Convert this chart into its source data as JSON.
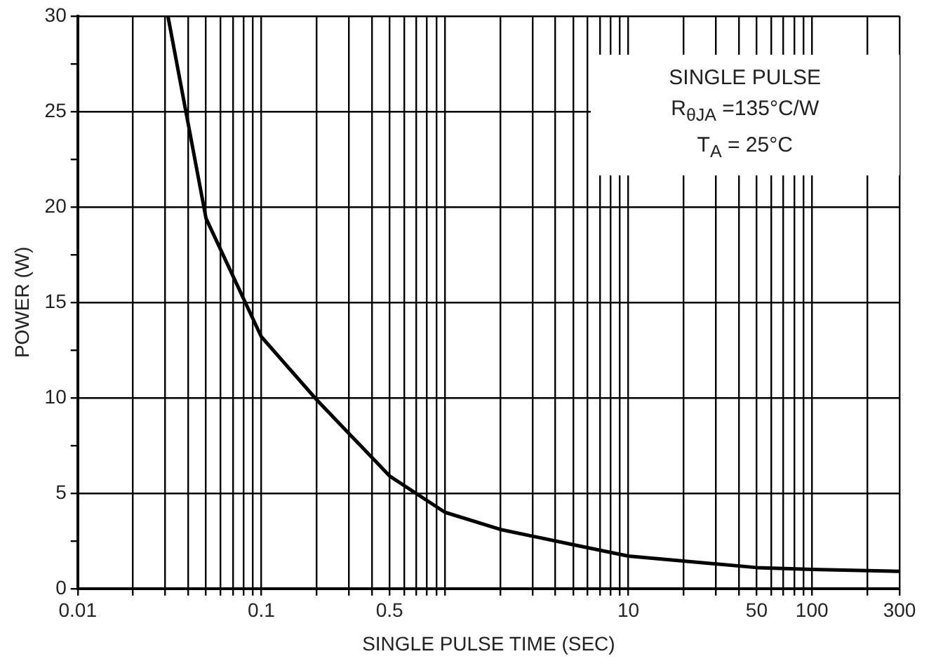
{
  "chart_data": {
    "type": "line",
    "xlabel": "SINGLE PULSE TIME (SEC)",
    "ylabel": "POWER (W)",
    "annotations": [
      "SINGLE PULSE",
      "R$_{θJA}$ =135°C/W",
      "T$_{A}$ = 25°C"
    ],
    "log": "x",
    "grid": true,
    "marker": "none",
    "line_style": "solid",
    "xlim": [
      0.01,
      300
    ],
    "xticks": [
      0.01,
      {
        "value": 0.02,
        "label": null
      },
      {
        "value": 0.03,
        "label": null
      },
      {
        "value": 0.04,
        "label": null
      },
      {
        "value": 0.05,
        "label": null
      },
      {
        "value": 0.06,
        "label": null
      },
      {
        "value": 0.07,
        "label": null
      },
      {
        "value": 0.08,
        "label": null
      },
      {
        "value": 0.09,
        "label": null
      },
      0.1,
      {
        "value": 0.2,
        "label": null
      },
      {
        "value": 0.3,
        "label": null
      },
      {
        "value": 0.4,
        "label": null
      },
      0.5,
      {
        "value": 0.6,
        "label": null
      },
      {
        "value": 0.7,
        "label": null
      },
      {
        "value": 0.8,
        "label": null
      },
      {
        "value": 0.9,
        "label": null
      },
      {
        "value": 1,
        "label": null
      },
      {
        "value": 2,
        "label": null
      },
      {
        "value": 3,
        "label": null
      },
      {
        "value": 4,
        "label": null
      },
      {
        "value": 5,
        "label": null
      },
      {
        "value": 6,
        "label": null
      },
      {
        "value": 7,
        "label": null
      },
      {
        "value": 8,
        "label": null
      },
      {
        "value": 9,
        "label": null
      },
      10,
      {
        "value": 20,
        "label": null
      },
      {
        "value": 30,
        "label": null
      },
      {
        "value": 40,
        "label": null
      },
      50,
      {
        "value": 60,
        "label": null
      },
      {
        "value": 70,
        "label": null
      },
      {
        "value": 80,
        "label": null
      },
      {
        "value": 90,
        "label": null
      },
      100,
      {
        "value": 200,
        "label": null
      },
      300
    ],
    "ylim": [
      0,
      30
    ],
    "yticks": [
      0,
      {
        "value": 2.5,
        "label": null
      },
      5,
      {
        "value": 7.5,
        "label": null
      },
      10,
      {
        "value": 12.5,
        "label": null
      },
      15,
      {
        "value": 17.5,
        "label": null
      },
      20,
      {
        "value": 22.5,
        "label": null
      },
      25,
      {
        "value": 27.5,
        "label": null
      },
      30
    ],
    "series": [
      {
        "color": "#000000",
        "x": [
          0.031,
          0.05,
          0.1,
          0.2,
          0.5,
          1,
          2,
          5,
          10,
          50,
          100,
          300
        ],
        "values": [
          30,
          19.4,
          13.2,
          9.9,
          5.9,
          4.0,
          3.1,
          2.3,
          1.7,
          1.1,
          1.0,
          0.9
        ]
      }
    ]
  }
}
